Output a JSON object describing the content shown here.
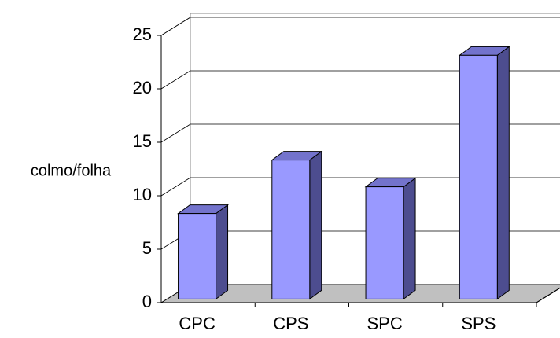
{
  "chart_data": {
    "type": "bar3d",
    "ylabel": "colmo/folha",
    "categories": [
      "CPC",
      "CPS",
      "SPC",
      "SPS"
    ],
    "values": [
      8,
      13,
      10.5,
      22.8
    ],
    "color": "#9999ff",
    "side_color": "#4d4d8f",
    "top_color": "#7373cc",
    "floor_color": "#c0c0c0",
    "ylim": [
      0,
      25
    ],
    "yticks": [
      0,
      5,
      10,
      15,
      20,
      25
    ],
    "grid": true
  }
}
